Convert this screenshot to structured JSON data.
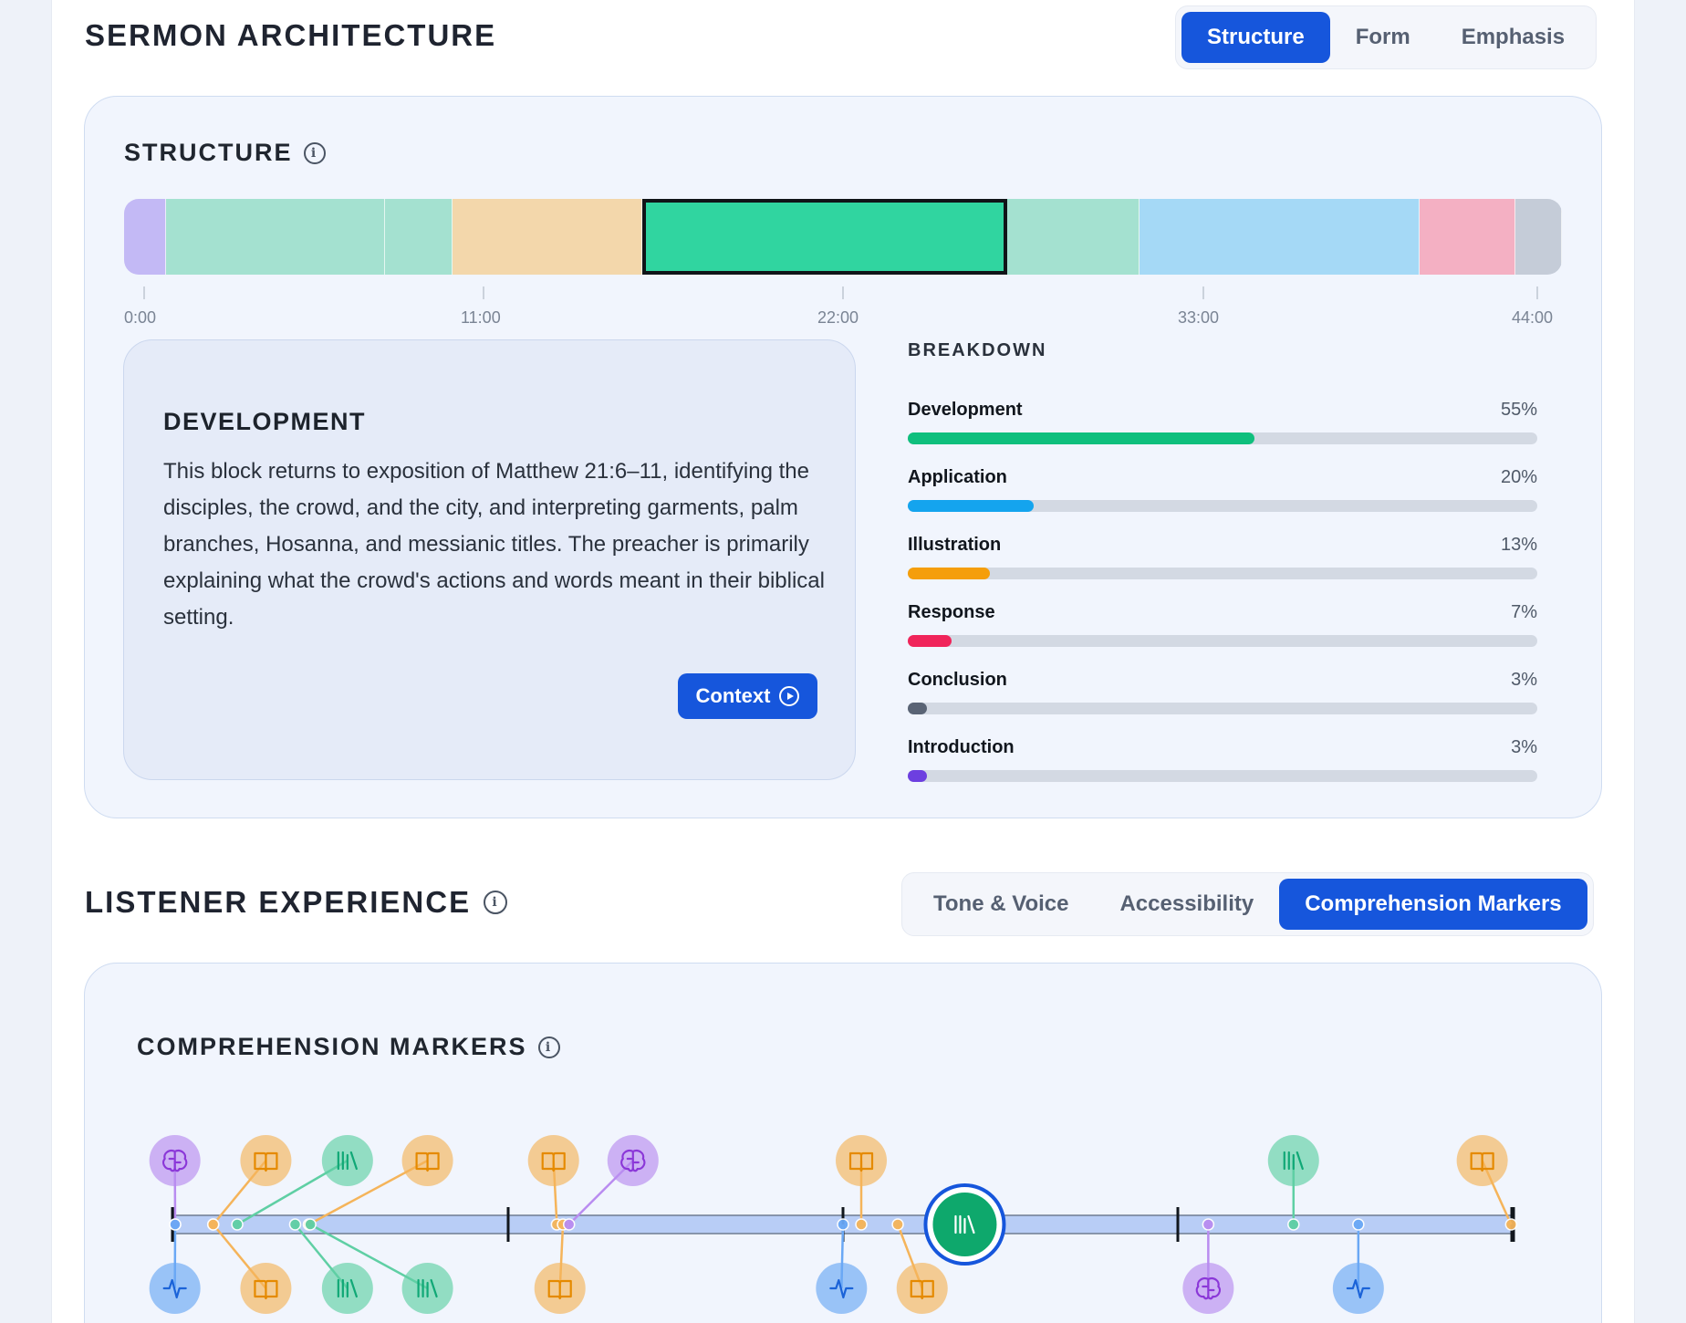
{
  "header": {
    "title": "SERMON ARCHITECTURE",
    "tabs": [
      {
        "label": "Structure",
        "active": true
      },
      {
        "label": "Form",
        "active": false
      },
      {
        "label": "Emphasis",
        "active": false
      }
    ]
  },
  "structure": {
    "title": "STRUCTURE",
    "info_icon": "info-icon",
    "segments": [
      {
        "color": "#c3b9f5",
        "duration": 0.92
      },
      {
        "color": "#a4e1d0",
        "duration": 4.8
      },
      {
        "color": "#a4e1d0",
        "duration": 1.47
      },
      {
        "color": "#f3d7ab",
        "duration": 4.16
      },
      {
        "color": "#30d5a0",
        "duration": 8.0,
        "selected": true
      },
      {
        "color": "#a4e1d0",
        "duration": 2.89
      },
      {
        "color": "#a5d9f6",
        "duration": 6.14
      },
      {
        "color": "#f4b0c3",
        "duration": 2.1
      },
      {
        "color": "#c5ccd8",
        "duration": 1.02
      }
    ],
    "ticks": [
      "0:00",
      "11:00",
      "22:00",
      "33:00",
      "44:00"
    ]
  },
  "detail": {
    "title": "DEVELOPMENT",
    "body": "This block returns to exposition of Matthew 21:6–11, identifying the disciples, the crowd, and the city, and interpreting garments, palm branches, Hosanna, and messianic titles. The preacher is primarily explaining what the crowd's actions and words meant in their biblical setting.",
    "button_label": "Context",
    "button_icon": "play-circle-icon"
  },
  "breakdown": {
    "title": "BREAKDOWN",
    "rows": [
      {
        "label": "Development",
        "pct": "55%",
        "value": 0.55,
        "color": "#0fbf7d"
      },
      {
        "label": "Application",
        "pct": "20%",
        "value": 0.2,
        "color": "#14a4ee"
      },
      {
        "label": "Illustration",
        "pct": "13%",
        "value": 0.13,
        "color": "#f59e0b"
      },
      {
        "label": "Response",
        "pct": "7%",
        "value": 0.07,
        "color": "#f0245a"
      },
      {
        "label": "Conclusion",
        "pct": "3%",
        "value": 0.03,
        "color": "#5a6475"
      },
      {
        "label": "Introduction",
        "pct": "3%",
        "value": 0.03,
        "color": "#6d3fe0"
      }
    ]
  },
  "listener": {
    "title": "LISTENER EXPERIENCE",
    "info_icon": "info-icon",
    "tabs": [
      {
        "label": "Tone & Voice",
        "active": false
      },
      {
        "label": "Accessibility",
        "active": false
      },
      {
        "label": "Comprehension Markers",
        "active": true
      }
    ]
  },
  "comprehension": {
    "title": "COMPREHENSION MARKERS",
    "info_icon": "info-icon",
    "duration_min": 44,
    "markers": [
      {
        "t": 0.06,
        "pos": "top",
        "lane": 0.05,
        "type": "brain",
        "color": "#b98cf0"
      },
      {
        "t": 0.06,
        "pos": "bottom",
        "lane": 0.05,
        "type": "pulse",
        "color": "#6aa8f5"
      },
      {
        "t": 1.31,
        "pos": "top",
        "lane": 3.04,
        "type": "book",
        "color": "#f5b45a"
      },
      {
        "t": 1.31,
        "pos": "bottom",
        "lane": 3.04,
        "type": "book",
        "color": "#f5b45a"
      },
      {
        "t": 2.1,
        "pos": "top",
        "lane": 5.72,
        "type": "library",
        "color": "#5fcfa4"
      },
      {
        "t": 4.0,
        "pos": "bottom",
        "lane": 5.72,
        "type": "library",
        "color": "#5fcfa4"
      },
      {
        "t": 4.45,
        "pos": "top",
        "lane": 8.35,
        "type": "book",
        "color": "#f5b45a"
      },
      {
        "t": 4.5,
        "pos": "bottom",
        "lane": 8.35,
        "type": "library",
        "color": "#5fcfa4"
      },
      {
        "t": 12.6,
        "pos": "top",
        "lane": 12.49,
        "type": "book",
        "color": "#f5b45a"
      },
      {
        "t": 12.8,
        "pos": "bottom",
        "lane": 12.7,
        "type": "book",
        "color": "#f5b45a"
      },
      {
        "t": 13.0,
        "pos": "top",
        "lane": 15.1,
        "type": "brain",
        "color": "#b98cf0"
      },
      {
        "t": 22.0,
        "pos": "bottom",
        "lane": 21.95,
        "type": "pulse",
        "color": "#6aa8f5"
      },
      {
        "t": 22.6,
        "pos": "top",
        "lane": 22.6,
        "type": "book",
        "color": "#f5b45a"
      },
      {
        "t": 23.8,
        "pos": "bottom",
        "lane": 24.6,
        "type": "book",
        "color": "#f5b45a"
      },
      {
        "t": 26.0,
        "pos": "center",
        "lane": 26.0,
        "type": "library",
        "color": "#0ea86c"
      },
      {
        "t": 34.0,
        "pos": "bottom",
        "lane": 34.0,
        "type": "brain",
        "color": "#b98cf0"
      },
      {
        "t": 36.8,
        "pos": "top",
        "lane": 36.8,
        "type": "library",
        "color": "#5fcfa4"
      },
      {
        "t": 38.93,
        "pos": "bottom",
        "lane": 38.93,
        "type": "pulse",
        "color": "#6aa8f5"
      },
      {
        "t": 43.95,
        "pos": "top",
        "lane": 43.0,
        "type": "book",
        "color": "#f5b45a"
      }
    ]
  }
}
